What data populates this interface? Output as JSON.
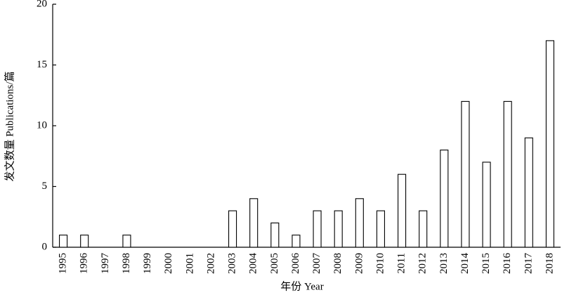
{
  "chart_data": {
    "type": "bar",
    "x_label": "年份  Year",
    "y_label": "发文数量 Publications/篇",
    "categories": [
      "1995",
      "1996",
      "1997",
      "1998",
      "1999",
      "2000",
      "2001",
      "2002",
      "2003",
      "2004",
      "2005",
      "2006",
      "2007",
      "2008",
      "2009",
      "2010",
      "2011",
      "2012",
      "2013",
      "2014",
      "2015",
      "2016",
      "2017",
      "2018"
    ],
    "values": [
      1,
      1,
      0,
      1,
      0,
      0,
      0,
      0,
      3,
      4,
      2,
      1,
      3,
      3,
      4,
      3,
      6,
      3,
      8,
      12,
      7,
      12,
      9,
      17
    ],
    "color": "#ffffff",
    "ylim": [
      0,
      20
    ],
    "yticks": [
      0,
      5,
      10,
      15,
      20
    ],
    "grid": false
  }
}
